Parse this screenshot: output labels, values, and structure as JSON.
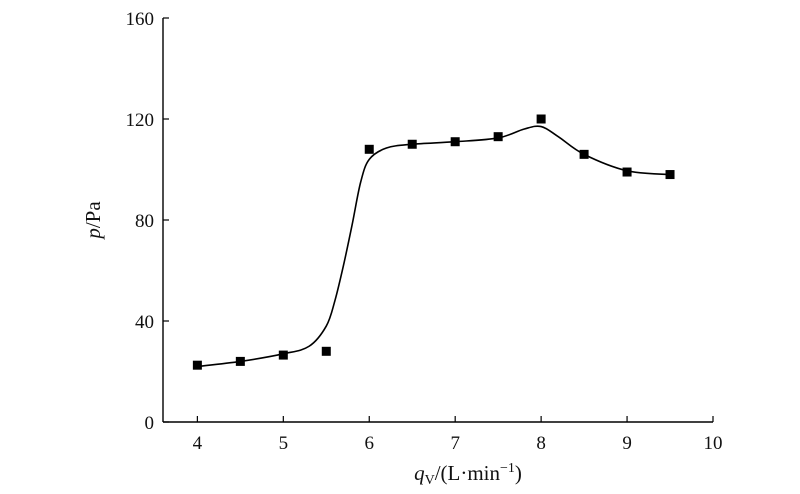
{
  "chart_data": {
    "type": "scatter",
    "x_axis": {
      "symbol": "q",
      "subscript": "V",
      "unit_prefix": "/(L·min",
      "unit_exp": "−1",
      "unit_suffix": ")",
      "lim": [
        3.6,
        10
      ],
      "ticks": [
        4,
        5,
        6,
        7,
        8,
        9,
        10
      ]
    },
    "y_axis": {
      "symbol": "p",
      "unit": "/Pa",
      "lim": [
        0,
        160
      ],
      "ticks": [
        0,
        40,
        80,
        120,
        160
      ]
    },
    "series": [
      {
        "marker": "square",
        "x": [
          4.0,
          4.5,
          5.0,
          5.5,
          6.0,
          6.5,
          7.0,
          7.5,
          8.0,
          8.5,
          9.0,
          9.5
        ],
        "y": [
          22.5,
          24,
          26.5,
          28,
          108,
          110,
          111,
          113,
          120,
          106,
          99,
          98
        ]
      }
    ],
    "fit_curve": {
      "x": [
        4.0,
        4.5,
        5.0,
        5.3,
        5.5,
        5.6,
        5.7,
        5.8,
        5.9,
        6.0,
        6.2,
        6.5,
        7.0,
        7.5,
        7.8,
        8.0,
        8.2,
        8.5,
        9.0,
        9.5
      ],
      "y": [
        22,
        24,
        27,
        30,
        38,
        48,
        62,
        78,
        95,
        104,
        108.5,
        110,
        111,
        112.5,
        116,
        117,
        113,
        106,
        99.5,
        98
      ]
    },
    "grid": false,
    "legend": "none"
  }
}
